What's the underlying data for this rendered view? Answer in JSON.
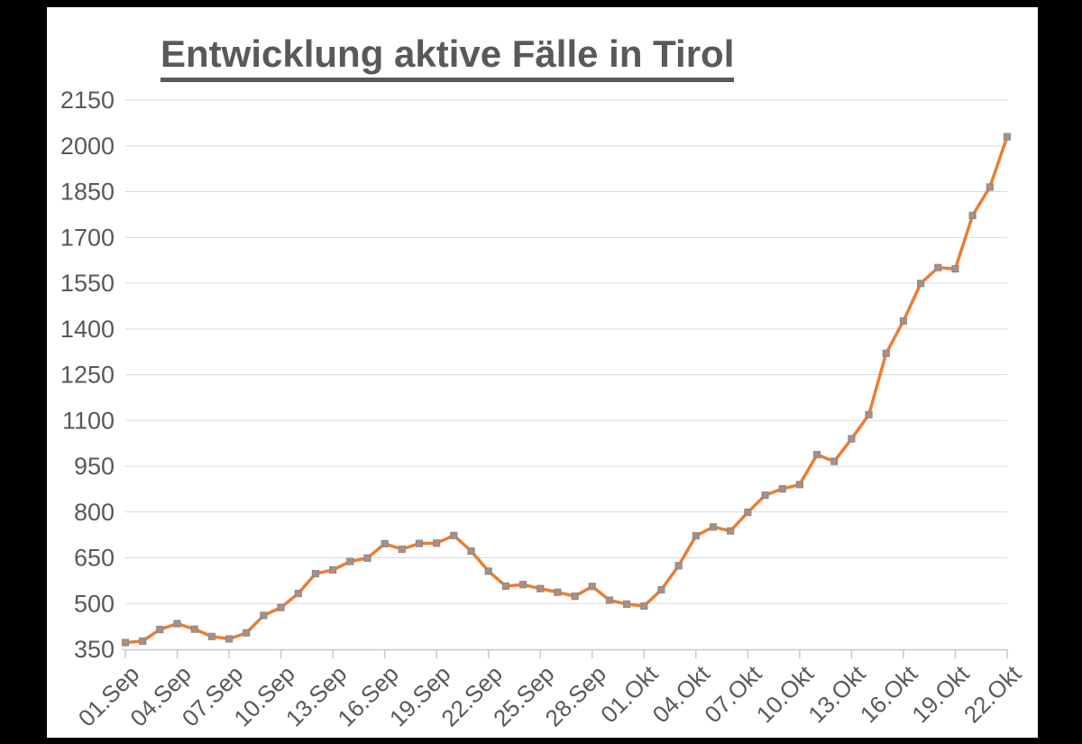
{
  "chart_data": {
    "type": "line",
    "title": "Entwicklung aktive Fälle in Tirol",
    "categories": [
      "01.Sep",
      "02.Sep",
      "03.Sep",
      "04.Sep",
      "05.Sep",
      "06.Sep",
      "07.Sep",
      "08.Sep",
      "09.Sep",
      "10.Sep",
      "11.Sep",
      "12.Sep",
      "13.Sep",
      "14.Sep",
      "15.Sep",
      "16.Sep",
      "17.Sep",
      "18.Sep",
      "19.Sep",
      "20.Sep",
      "21.Sep",
      "22.Sep",
      "23.Sep",
      "24.Sep",
      "25.Sep",
      "26.Sep",
      "27.Sep",
      "28.Sep",
      "29.Sep",
      "30.Sep",
      "01.Okt",
      "02.Okt",
      "03.Okt",
      "04.Okt",
      "05.Okt",
      "06.Okt",
      "07.Okt",
      "08.Okt",
      "09.Okt",
      "10.Okt",
      "11.Okt",
      "12.Okt",
      "13.Okt",
      "14.Okt",
      "15.Okt",
      "16.Okt",
      "17.Okt",
      "18.Okt",
      "19.Okt",
      "20.Okt",
      "21.Okt",
      "22.Okt"
    ],
    "series": [
      {
        "name": "aktive Fälle",
        "values": [
          372,
          377,
          415,
          434,
          416,
          392,
          384,
          404,
          461,
          487,
          533,
          598,
          610,
          638,
          649,
          696,
          678,
          697,
          698,
          723,
          672,
          606,
          557,
          562,
          549,
          537,
          524,
          556,
          511,
          498,
          492,
          545,
          624,
          722,
          751,
          738,
          799,
          855,
          876,
          890,
          988,
          966,
          1040,
          1119,
          1320,
          1426,
          1549,
          1601,
          1597,
          1772,
          1865,
          2030
        ]
      }
    ],
    "x_tick_labels": [
      "01.Sep",
      "04.Sep",
      "07.Sep",
      "10.Sep",
      "13.Sep",
      "16.Sep",
      "19.Sep",
      "22.Sep",
      "25.Sep",
      "28.Sep",
      "01.Okt",
      "04.Okt",
      "07.Okt",
      "10.Okt",
      "13.Okt",
      "16.Okt",
      "19.Okt",
      "22.Okt"
    ],
    "x_tick_interval": 3,
    "y_ticks": [
      350,
      500,
      650,
      800,
      950,
      1100,
      1250,
      1400,
      1550,
      1700,
      1850,
      2000,
      2150
    ],
    "ylim": [
      350,
      2150
    ],
    "grid": true,
    "legend_position": "none",
    "marker": "square",
    "xlabel": "",
    "ylabel": "",
    "colors": {
      "line": "#ED7D31",
      "marker_fill": "#AE8E7E",
      "marker_border": "#8C8C8C",
      "gridline": "#D9D9D9",
      "axis": "#C9C9C9",
      "tick_label": "#595959",
      "title": "#595959",
      "frame": "#000000",
      "chart_bg": "#FFFFFF"
    }
  }
}
